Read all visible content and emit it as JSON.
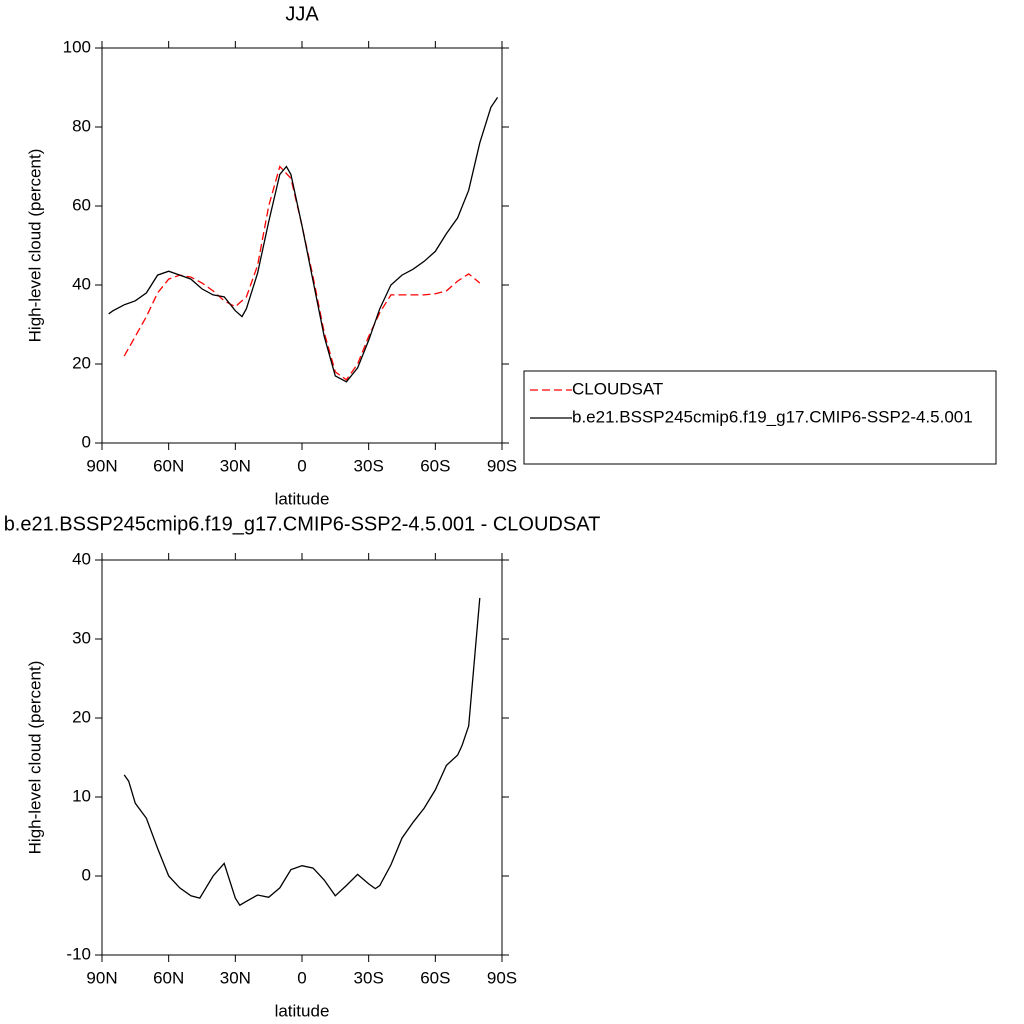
{
  "chart_data": [
    {
      "type": "line",
      "title": "JJA",
      "xlabel": "latitude",
      "ylabel": "High-level cloud (percent)",
      "xlim": [
        90,
        -90
      ],
      "xticks": [
        {
          "value": 90,
          "label": "90N"
        },
        {
          "value": 60,
          "label": "60N"
        },
        {
          "value": 30,
          "label": "30N"
        },
        0,
        {
          "value": -30,
          "label": "30S"
        },
        {
          "value": -60,
          "label": "60S"
        },
        {
          "value": -90,
          "label": "90S"
        }
      ],
      "ylim": [
        0,
        100
      ],
      "yticks": [
        0,
        20,
        40,
        60,
        80,
        100
      ],
      "series": [
        {
          "name": "CLOUDSAT",
          "color": "#ff0000",
          "dashed": true,
          "x": [
            80,
            75,
            70,
            65,
            60,
            55,
            50,
            45,
            40,
            35,
            30,
            25,
            20,
            15,
            10,
            5,
            0,
            -5,
            -10,
            -15,
            -20,
            -25,
            -30,
            -35,
            -40,
            -45,
            -50,
            -55,
            -60,
            -65,
            -70,
            -75,
            -80
          ],
          "values": [
            22,
            27,
            32,
            38,
            41.5,
            42.5,
            42,
            40.5,
            38.5,
            36,
            34.5,
            37,
            45,
            60,
            70,
            67,
            55,
            42,
            28,
            18,
            16,
            20,
            27,
            33,
            37.5,
            37.5,
            37.5,
            37.5,
            37.8,
            38.5,
            41,
            42.8,
            40.5
          ]
        },
        {
          "name": "b.e21.BSSP245cmip6.f19_g17.CMIP6-SSP2-4.5.001",
          "color": "#000000",
          "dashed": false,
          "x": [
            87,
            85,
            80,
            75,
            70,
            65,
            60,
            55,
            50,
            45,
            40,
            35,
            30,
            27,
            25,
            20,
            15,
            10,
            7,
            5,
            0,
            -5,
            -10,
            -15,
            -20,
            -25,
            -30,
            -35,
            -40,
            -45,
            -50,
            -55,
            -60,
            -65,
            -70,
            -75,
            -80,
            -85,
            -88
          ],
          "values": [
            32.7,
            33.5,
            35,
            36,
            38,
            42.5,
            43.5,
            42.5,
            41.5,
            39,
            37.5,
            37,
            33.5,
            32,
            34,
            43,
            56,
            68,
            70,
            68,
            55,
            41,
            27,
            17,
            15.5,
            19,
            26,
            34,
            40,
            42.5,
            44,
            46,
            48.5,
            53,
            57,
            64,
            76,
            85,
            87.5
          ]
        }
      ]
    },
    {
      "type": "line",
      "title": "b.e21.BSSP245cmip6.f19_g17.CMIP6-SSP2-4.5.001 - CLOUDSAT",
      "xlabel": "latitude",
      "ylabel": "High-level cloud (percent)",
      "xlim": [
        90,
        -90
      ],
      "xticks": [
        {
          "value": 90,
          "label": "90N"
        },
        {
          "value": 60,
          "label": "60N"
        },
        {
          "value": 30,
          "label": "30N"
        },
        0,
        {
          "value": -30,
          "label": "30S"
        },
        {
          "value": -60,
          "label": "60S"
        },
        {
          "value": -90,
          "label": "90S"
        }
      ],
      "ylim": [
        -10,
        40
      ],
      "yticks": [
        -10,
        0,
        10,
        20,
        30,
        40
      ],
      "color": "#000000",
      "x": [
        80,
        78,
        75,
        70,
        65,
        60,
        55,
        50,
        46,
        40,
        35,
        30,
        28,
        25,
        20,
        15,
        10,
        5,
        0,
        -5,
        -10,
        -15,
        -20,
        -25,
        -30,
        -33,
        -35,
        -40,
        -45,
        -50,
        -55,
        -60,
        -65,
        -70,
        -72,
        -75,
        -80
      ],
      "values": [
        12.8,
        12,
        9.2,
        7.3,
        3.5,
        0,
        -1.5,
        -2.5,
        -2.8,
        0,
        1.6,
        -2.8,
        -3.7,
        -3.2,
        -2.4,
        -2.7,
        -1.5,
        0.8,
        1.3,
        1.0,
        -0.5,
        -2.5,
        -1.2,
        0.2,
        -1,
        -1.6,
        -1.2,
        1.4,
        4.8,
        6.8,
        8.6,
        10.9,
        14,
        15.3,
        16.5,
        19,
        35.2
      ]
    }
  ]
}
